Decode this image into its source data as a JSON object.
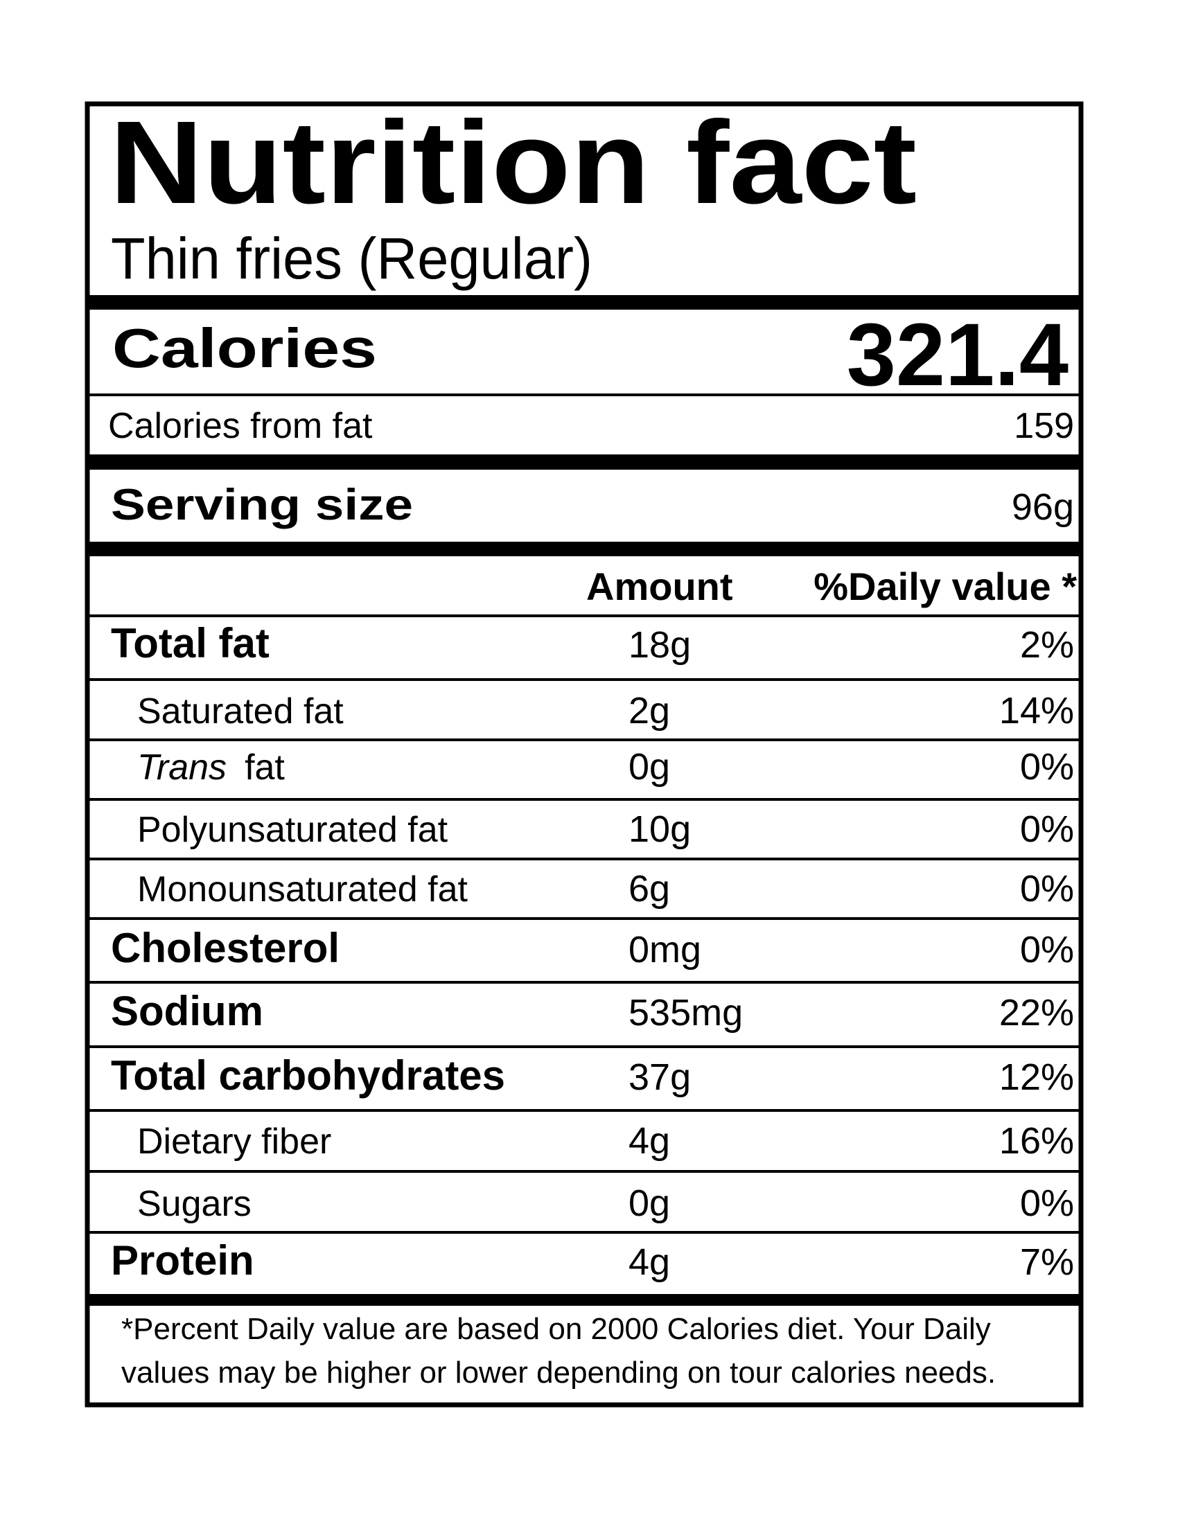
{
  "header": {
    "title": "Nutrition fact",
    "subtitle": "Thin fries (Regular)"
  },
  "calories": {
    "label": "Calories",
    "value": "321.4"
  },
  "calories_from_fat": {
    "label": "Calories from fat",
    "value": "159"
  },
  "serving_size": {
    "label": "Serving size",
    "value": "96g"
  },
  "table": {
    "columns": [
      "Amount",
      "%Daily value *"
    ],
    "rows": [
      {
        "label": "Total fat",
        "bold": true,
        "amount": "18g",
        "daily": "2%"
      },
      {
        "label": "Saturated fat",
        "bold": false,
        "amount": "2g",
        "daily": "14%"
      },
      {
        "label_italic": "Trans",
        "label": "fat",
        "bold": false,
        "amount": "0g",
        "daily": "0%"
      },
      {
        "label": "Polyunsaturated fat",
        "bold": false,
        "amount": "10g",
        "daily": "0%"
      },
      {
        "label": "Monounsaturated fat",
        "bold": false,
        "amount": "6g",
        "daily": "0%"
      },
      {
        "label": "Cholesterol",
        "bold": true,
        "amount": "0mg",
        "daily": "0%"
      },
      {
        "label": "Sodium",
        "bold": true,
        "amount": "535mg",
        "daily": "22%"
      },
      {
        "label": "Total carbohydrates",
        "bold": true,
        "amount": "37g",
        "daily": "12%"
      },
      {
        "label": "Dietary fiber",
        "bold": false,
        "amount": "4g",
        "daily": "16%"
      },
      {
        "label": "Sugars",
        "bold": false,
        "amount": "0g",
        "daily": "0%"
      },
      {
        "label": "Protein",
        "bold": true,
        "amount": "4g",
        "daily": "7%"
      }
    ]
  },
  "footnote": [
    "*Percent Daily value are based on 2000 Calories diet. Your Daily",
    "values may be higher or lower depending on tour calories needs."
  ]
}
